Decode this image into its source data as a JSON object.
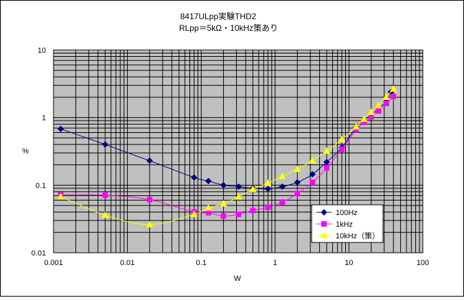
{
  "chart_data": {
    "type": "line",
    "title": "8417ULpp実験THD2",
    "subtitle": "RLpp＝5kΩ・10kHz策あり",
    "xlabel": "W",
    "ylabel": "%",
    "xscale": "log",
    "yscale": "log",
    "xlim": [
      0.001,
      100
    ],
    "ylim": [
      0.01,
      10
    ],
    "x_ticks": [
      "0.001",
      "0.01",
      "0.1",
      "1",
      "10",
      "100"
    ],
    "y_ticks": [
      "0.01",
      "0.1",
      "1",
      "10"
    ],
    "grid": true,
    "legend_position": "bottom-right",
    "colors": {
      "plot_bg": "#c0c0c0",
      "grid": "#000000"
    },
    "series": [
      {
        "name": "100Hz",
        "color": "#000080",
        "marker": "diamond",
        "points": [
          [
            0.00125,
            0.68
          ],
          [
            0.005,
            0.4
          ],
          [
            0.02,
            0.23
          ],
          [
            0.08,
            0.13
          ],
          [
            0.125,
            0.115
          ],
          [
            0.2,
            0.1
          ],
          [
            0.32,
            0.095
          ],
          [
            0.5,
            0.09
          ],
          [
            0.8,
            0.088
          ],
          [
            1.25,
            0.095
          ],
          [
            2,
            0.11
          ],
          [
            3.2,
            0.145
          ],
          [
            5,
            0.22
          ],
          [
            8,
            0.36
          ],
          [
            12.5,
            0.72
          ],
          [
            16,
            0.92
          ],
          [
            20,
            1.1
          ],
          [
            25,
            1.35
          ],
          [
            32,
            1.75
          ],
          [
            37,
            2.4
          ]
        ]
      },
      {
        "name": "1kHz",
        "color": "#ff00ff",
        "marker": "square",
        "points": [
          [
            0.00125,
            0.072
          ],
          [
            0.005,
            0.071
          ],
          [
            0.02,
            0.061
          ],
          [
            0.08,
            0.04
          ],
          [
            0.125,
            0.039
          ],
          [
            0.2,
            0.035
          ],
          [
            0.32,
            0.037
          ],
          [
            0.5,
            0.042
          ],
          [
            0.8,
            0.047
          ],
          [
            1.25,
            0.056
          ],
          [
            2,
            0.075
          ],
          [
            3.2,
            0.11
          ],
          [
            5,
            0.18
          ],
          [
            8,
            0.34
          ],
          [
            12.5,
            0.66
          ],
          [
            16,
            0.85
          ],
          [
            20,
            1.02
          ],
          [
            25,
            1.25
          ],
          [
            32,
            1.62
          ],
          [
            40,
            2.05
          ]
        ]
      },
      {
        "name": "10kHz（策）",
        "color": "#ffff00",
        "marker": "triangle",
        "points": [
          [
            0.00125,
            0.068
          ],
          [
            0.005,
            0.036
          ],
          [
            0.02,
            0.026
          ],
          [
            0.08,
            0.037
          ],
          [
            0.125,
            0.046
          ],
          [
            0.2,
            0.053
          ],
          [
            0.32,
            0.067
          ],
          [
            0.5,
            0.087
          ],
          [
            0.8,
            0.107
          ],
          [
            1.25,
            0.135
          ],
          [
            2,
            0.172
          ],
          [
            3.2,
            0.23
          ],
          [
            5,
            0.32
          ],
          [
            8,
            0.47
          ],
          [
            12.5,
            0.73
          ],
          [
            16,
            0.95
          ],
          [
            20,
            1.2
          ],
          [
            25,
            1.5
          ],
          [
            32,
            2.0
          ],
          [
            40,
            2.65
          ]
        ]
      }
    ]
  }
}
